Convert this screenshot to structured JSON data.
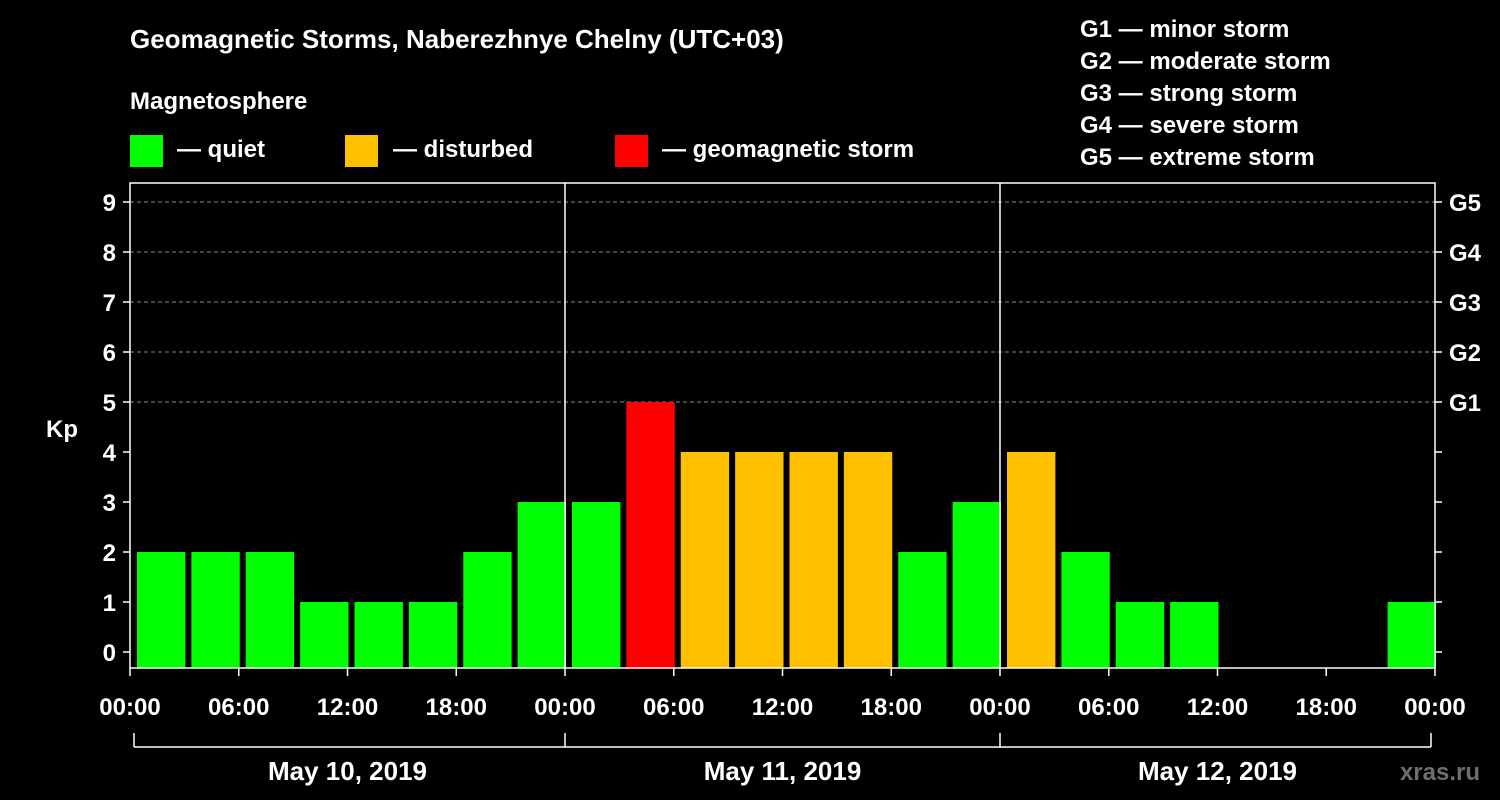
{
  "title": "Geomagnetic Storms, Naberezhnye Chelny (UTC+03)",
  "magnetosphere_label": "Magnetosphere",
  "status_legend": [
    {
      "label": "— quiet",
      "color": "#00ff00"
    },
    {
      "label": "— disturbed",
      "color": "#ffc000"
    },
    {
      "label": "— geomagnetic storm",
      "color": "#ff0000"
    }
  ],
  "storm_scale": [
    "G1 — minor storm",
    "G2 — moderate storm",
    "G3 — strong storm",
    "G4 — severe storm",
    "G5 — extreme storm"
  ],
  "watermark": "xras.ru",
  "chart_data": {
    "type": "bar",
    "title": "Geomagnetic Storms, Naberezhnye Chelny (UTC+03)",
    "ylabel": "Kp",
    "ylim": [
      0,
      9
    ],
    "yticks": [
      "0",
      "1",
      "2",
      "3",
      "4",
      "5",
      "6",
      "7",
      "8",
      "9"
    ],
    "right_ticks": [
      {
        "kp": 5,
        "label": "G1"
      },
      {
        "kp": 6,
        "label": "G2"
      },
      {
        "kp": 7,
        "label": "G3"
      },
      {
        "kp": 8,
        "label": "G4"
      },
      {
        "kp": 9,
        "label": "G5"
      }
    ],
    "xticks": [
      "00:00",
      "06:00",
      "12:00",
      "18:00",
      "00:00",
      "06:00",
      "12:00",
      "18:00",
      "00:00",
      "06:00",
      "12:00",
      "18:00",
      "00:00"
    ],
    "days": [
      "May 10, 2019",
      "May 11, 2019",
      "May 12, 2019"
    ],
    "interval_hours": 3,
    "values": [
      2,
      2,
      2,
      1,
      1,
      1,
      2,
      3,
      3,
      5,
      4,
      4,
      4,
      4,
      2,
      3,
      4,
      2,
      1,
      1,
      0,
      0,
      0,
      1
    ],
    "thresholds": {
      "disturbed": 4,
      "storm": 5
    },
    "colors": {
      "quiet": "#00ff00",
      "disturbed": "#ffc000",
      "storm": "#ff0000"
    }
  }
}
